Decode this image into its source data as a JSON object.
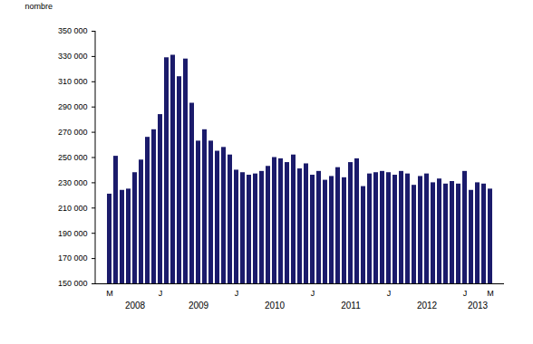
{
  "chart_data": {
    "type": "bar",
    "y_label": "nombre",
    "color": "#1b1b6b",
    "categories": [
      "M",
      null,
      null,
      null,
      null,
      null,
      null,
      null,
      "J",
      null,
      null,
      null,
      null,
      null,
      null,
      null,
      null,
      null,
      null,
      null,
      "J",
      null,
      null,
      null,
      null,
      null,
      null,
      null,
      null,
      null,
      null,
      null,
      "J",
      null,
      null,
      null,
      null,
      null,
      null,
      null,
      null,
      null,
      null,
      null,
      "J",
      null,
      null,
      null,
      null,
      null,
      null,
      null,
      null,
      null,
      null,
      null,
      "J",
      null,
      null,
      null,
      "M"
    ],
    "x_group_labels": [
      null,
      null,
      null,
      null,
      "2008",
      null,
      null,
      null,
      null,
      null,
      null,
      null,
      null,
      null,
      "2009",
      null,
      null,
      null,
      null,
      null,
      null,
      null,
      null,
      null,
      null,
      null,
      "2010",
      null,
      null,
      null,
      null,
      null,
      null,
      null,
      null,
      null,
      null,
      null,
      "2011",
      null,
      null,
      null,
      null,
      null,
      null,
      null,
      null,
      null,
      null,
      null,
      "2012",
      null,
      null,
      null,
      null,
      null,
      null,
      null,
      "2013",
      null,
      null
    ],
    "values": [
      221000,
      251000,
      224000,
      225000,
      238000,
      248000,
      266000,
      272000,
      284000,
      329000,
      331000,
      314000,
      328000,
      293000,
      263000,
      272000,
      263000,
      255000,
      258000,
      252000,
      240000,
      238000,
      236000,
      237000,
      239000,
      243000,
      250000,
      249000,
      246000,
      252000,
      241000,
      245000,
      236000,
      239000,
      232000,
      235000,
      242000,
      234000,
      246000,
      249000,
      227000,
      237000,
      238000,
      239000,
      238000,
      236000,
      239000,
      237000,
      228000,
      235000,
      237000,
      230000,
      233000,
      229000,
      231000,
      229000,
      239000,
      224000,
      230000,
      229000,
      225000
    ],
    "ylim": [
      150000,
      350000
    ],
    "yticks": [
      {
        "value": 150000,
        "label": "150 000"
      },
      {
        "value": 170000,
        "label": "170 000"
      },
      {
        "value": 190000,
        "label": "190 000"
      },
      {
        "value": 210000,
        "label": "210 000"
      },
      {
        "value": 230000,
        "label": "230 000"
      },
      {
        "value": 250000,
        "label": "250 000"
      },
      {
        "value": 270000,
        "label": "270 000"
      },
      {
        "value": 290000,
        "label": "290 000"
      },
      {
        "value": 310000,
        "label": "310 000"
      },
      {
        "value": 330000,
        "label": "330 000"
      },
      {
        "value": 350000,
        "label": "350 000"
      }
    ],
    "grid": false
  }
}
